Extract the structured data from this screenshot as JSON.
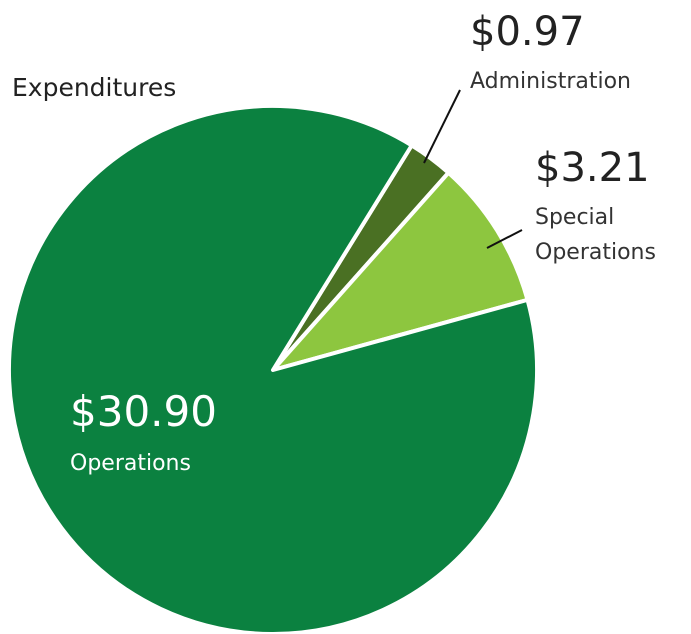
{
  "chart_data": {
    "type": "pie",
    "title": "Expenditures",
    "categories": [
      "Administration",
      "Special Operations",
      "Operations"
    ],
    "values": [
      0.97,
      3.21,
      30.9
    ],
    "value_labels": [
      "$0.97",
      "$3.21",
      "$30.90"
    ],
    "colors": [
      "#4a7023",
      "#8dc63f",
      "#0b8140"
    ]
  }
}
